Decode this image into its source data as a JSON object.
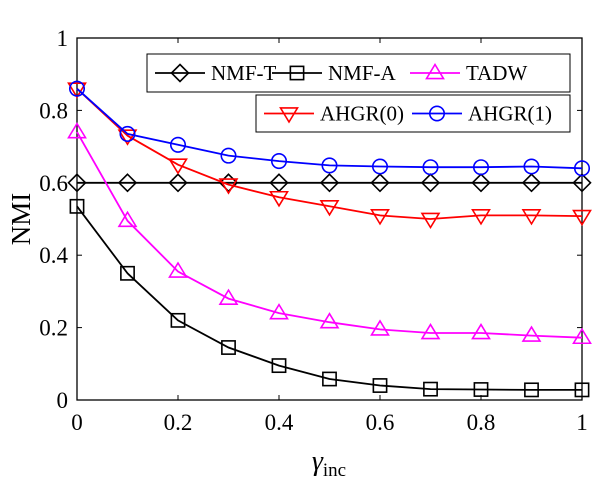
{
  "chart_data": {
    "type": "line",
    "xlabel": "γ",
    "xlabel_subscript": "inc",
    "ylabel": "NMI",
    "xlim": [
      0,
      1
    ],
    "ylim": [
      0,
      1
    ],
    "x_ticks": [
      "0",
      "0.2",
      "0.4",
      "0.6",
      "0.8",
      "1"
    ],
    "y_ticks": [
      "0",
      "0.2",
      "0.4",
      "0.6",
      "0.8",
      "1"
    ],
    "x": [
      0,
      0.1,
      0.2,
      0.3,
      0.4,
      0.5,
      0.6,
      0.7,
      0.8,
      0.9,
      1.0
    ],
    "grid": false,
    "series": [
      {
        "name": "NMF-T",
        "color": "#000000",
        "marker": "diamond",
        "values": [
          0.6,
          0.6,
          0.6,
          0.6,
          0.6,
          0.6,
          0.6,
          0.6,
          0.6,
          0.6,
          0.6
        ]
      },
      {
        "name": "NMF-A",
        "color": "#000000",
        "marker": "square",
        "values": [
          0.535,
          0.35,
          0.22,
          0.145,
          0.095,
          0.058,
          0.04,
          0.03,
          0.029,
          0.028,
          0.028
        ]
      },
      {
        "name": "TADW",
        "color": "#ff00ff",
        "marker": "triangle-up",
        "values": [
          0.74,
          0.495,
          0.355,
          0.28,
          0.24,
          0.215,
          0.195,
          0.185,
          0.185,
          0.178,
          0.172
        ]
      },
      {
        "name": "AHGR(0)",
        "color": "#ff0000",
        "marker": "triangle-down",
        "values": [
          0.86,
          0.73,
          0.65,
          0.595,
          0.56,
          0.535,
          0.51,
          0.5,
          0.51,
          0.51,
          0.508
        ]
      },
      {
        "name": "AHGR(1)",
        "color": "#0000ff",
        "marker": "circle",
        "values": [
          0.86,
          0.735,
          0.705,
          0.675,
          0.66,
          0.648,
          0.645,
          0.643,
          0.643,
          0.645,
          0.64
        ]
      }
    ],
    "legend": {
      "placement": "top-right",
      "rows": [
        [
          "NMF-T",
          "NMF-A",
          "TADW"
        ],
        [
          "AHGR(0)",
          "AHGR(1)"
        ]
      ]
    }
  }
}
